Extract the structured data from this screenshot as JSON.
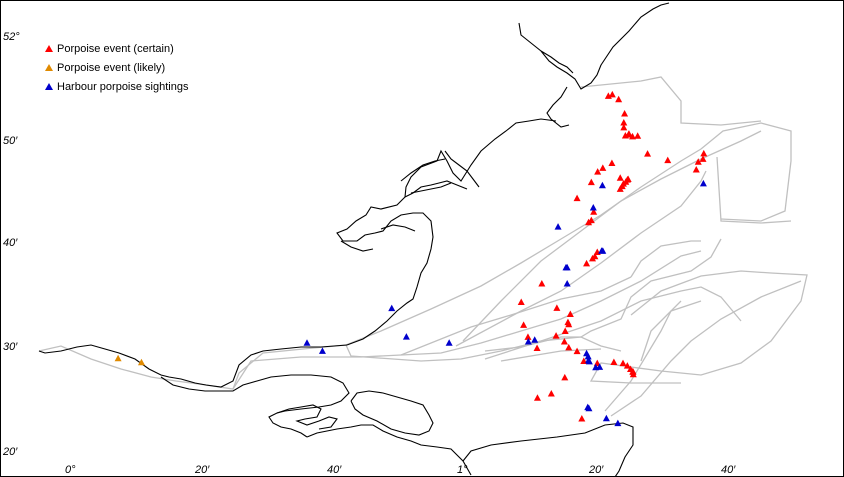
{
  "legend": {
    "certain": "Porpoise event (certain)",
    "likely": "Porpoise event (likely)",
    "sightings": "Harbour porpoise sightings"
  },
  "colors": {
    "certain": "#ff0000",
    "likely": "#e08a00",
    "sightings": "#0000cc",
    "coastline": "#000000",
    "routes": "#bbbbbb"
  },
  "axes": {
    "y_labels": [
      "52°",
      "50′",
      "40′",
      "30′",
      "20′"
    ],
    "x_labels": [
      "0°",
      "20′",
      "40′",
      "1°",
      "20′",
      "40′"
    ]
  },
  "events_certain": [
    [
      51.9055,
      1.362
    ],
    [
      51.908,
      1.372
    ],
    [
      51.9,
      1.388
    ],
    [
      51.877,
      1.403
    ],
    [
      51.8625,
      1.401
    ],
    [
      51.8545,
      1.401
    ],
    [
      51.843,
      1.413
    ],
    [
      51.84,
      1.423
    ],
    [
      51.8415,
      1.405
    ],
    [
      51.8445,
      1.414
    ],
    [
      51.841,
      1.436
    ],
    [
      51.8125,
      1.603
    ],
    [
      51.8035,
      1.601
    ],
    [
      51.799,
      1.589
    ],
    [
      51.7865,
      1.584
    ],
    [
      51.8015,
      1.512
    ],
    [
      51.812,
      1.461
    ],
    [
      51.797,
      1.371
    ],
    [
      51.789,
      1.348
    ],
    [
      51.783,
      1.335
    ],
    [
      51.773,
      1.392
    ],
    [
      51.766,
      1.319
    ],
    [
      51.771,
      1.412
    ],
    [
      51.77,
      1.41
    ],
    [
      51.7665,
      1.406
    ],
    [
      51.7635,
      1.4
    ],
    [
      51.7595,
      1.397
    ],
    [
      51.755,
      1.392
    ],
    [
      51.74,
      1.283
    ],
    [
      51.718,
      1.325
    ],
    [
      51.7045,
      1.319
    ],
    [
      51.701,
      1.312
    ],
    [
      51.653,
      1.334
    ],
    [
      51.646,
      1.328
    ],
    [
      51.6425,
      1.322
    ],
    [
      51.6345,
      1.307
    ],
    [
      51.602,
      1.194
    ],
    [
      51.5625,
      1.232
    ],
    [
      51.5525,
      1.266
    ],
    [
      51.5395,
      1.26
    ],
    [
      51.536,
      1.262
    ],
    [
      51.525,
      1.253
    ],
    [
      51.5175,
      1.23
    ],
    [
      51.508,
      1.251
    ],
    [
      51.4985,
      1.262
    ],
    [
      51.4925,
      1.283
    ],
    [
      51.4765,
      1.3
    ],
    [
      51.473,
      1.334
    ],
    [
      51.475,
      1.376
    ],
    [
      51.473,
      1.399
    ],
    [
      51.469,
      1.41
    ],
    [
      51.4635,
      1.418
    ],
    [
      51.459,
      1.424
    ],
    [
      51.455,
      1.425
    ],
    [
      51.46,
      1.424
    ],
    [
      51.45,
      1.252
    ],
    [
      51.424,
      1.218
    ],
    [
      51.417,
      1.183
    ],
    [
      51.3835,
      1.295
    ],
    [
      51.572,
      1.142
    ],
    [
      51.535,
      1.148
    ],
    [
      51.5155,
      1.159
    ],
    [
      51.4975,
      1.182
    ]
  ],
  "events_likely": [
    [
      51.481,
      0.124
    ],
    [
      51.4745,
      0.183
    ]
  ],
  "sightings": [
    [
      51.764,
      1.602
    ],
    [
      51.761,
      1.347
    ],
    [
      51.725,
      1.324
    ],
    [
      51.694,
      1.235
    ],
    [
      51.655,
      1.345
    ],
    [
      51.655,
      1.348
    ],
    [
      51.628,
      1.255
    ],
    [
      51.628,
      1.258
    ],
    [
      51.602,
      1.258
    ],
    [
      51.562,
      0.815
    ],
    [
      51.516,
      0.852
    ],
    [
      51.511,
      1.176
    ],
    [
      51.506,
      0.96
    ],
    [
      51.493,
      0.64
    ],
    [
      51.506,
      0.601
    ],
    [
      51.508,
      1.16
    ],
    [
      51.489,
      1.307
    ],
    [
      51.484,
      1.311
    ],
    [
      51.478,
      1.312
    ],
    [
      51.476,
      1.314
    ],
    [
      51.4665,
      1.33
    ],
    [
      51.467,
      1.34
    ],
    [
      51.402,
      1.31
    ],
    [
      51.4,
      1.313
    ],
    [
      51.384,
      1.357
    ],
    [
      51.376,
      1.386
    ]
  ],
  "labels": [
    "event-certain-marker",
    "event-likely-marker",
    "sighting-marker"
  ]
}
